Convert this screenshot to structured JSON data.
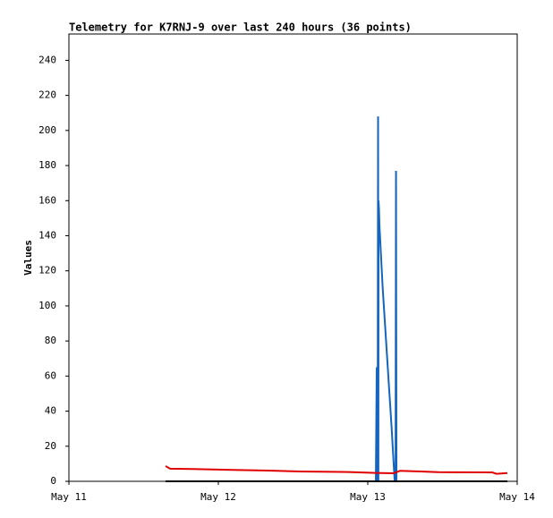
{
  "chart_data": {
    "type": "line",
    "title": "Telemetry for K7RNJ-9 over last 240 hours (36 points)",
    "y_label": "Values",
    "xlim": [
      0,
      3
    ],
    "xticks": [
      {
        "value": 0,
        "label": "May 11"
      },
      {
        "value": 1,
        "label": "May 12"
      },
      {
        "value": 2,
        "label": "May 13"
      },
      {
        "value": 3,
        "label": "May 14"
      }
    ],
    "ylim": [
      0,
      255
    ],
    "yticks": [
      0,
      20,
      40,
      60,
      80,
      100,
      120,
      140,
      160,
      180,
      200,
      220,
      240
    ],
    "grid": false,
    "series": [
      {
        "color": "#1565c0",
        "x": [
          2.054,
          2.06,
          2.062,
          2.063,
          2.066,
          2.069,
          2.071,
          2.072,
          2.075,
          2.078,
          2.1,
          2.13,
          2.16,
          2.18,
          2.186,
          2.189,
          2.192
        ],
        "values": [
          0,
          65,
          0,
          32,
          0,
          208,
          0,
          160,
          155,
          146,
          110,
          70,
          30,
          0,
          0,
          177,
          0
        ]
      },
      {
        "color": "#e00000",
        "x": [
          0.647,
          0.677,
          0.826,
          1.096,
          1.335,
          1.545,
          1.874,
          2.054,
          2.174,
          2.216,
          2.353,
          2.473,
          2.832,
          2.862,
          2.934
        ],
        "values": [
          8.7,
          7.2,
          7,
          6.5,
          6.1,
          5.6,
          5.3,
          4.8,
          4.6,
          6,
          5.6,
          5.2,
          5.1,
          4.3,
          4.7
        ]
      },
      {
        "color": "#000000",
        "x": [
          0.647,
          2.934
        ],
        "values": [
          0,
          0
        ]
      }
    ]
  }
}
